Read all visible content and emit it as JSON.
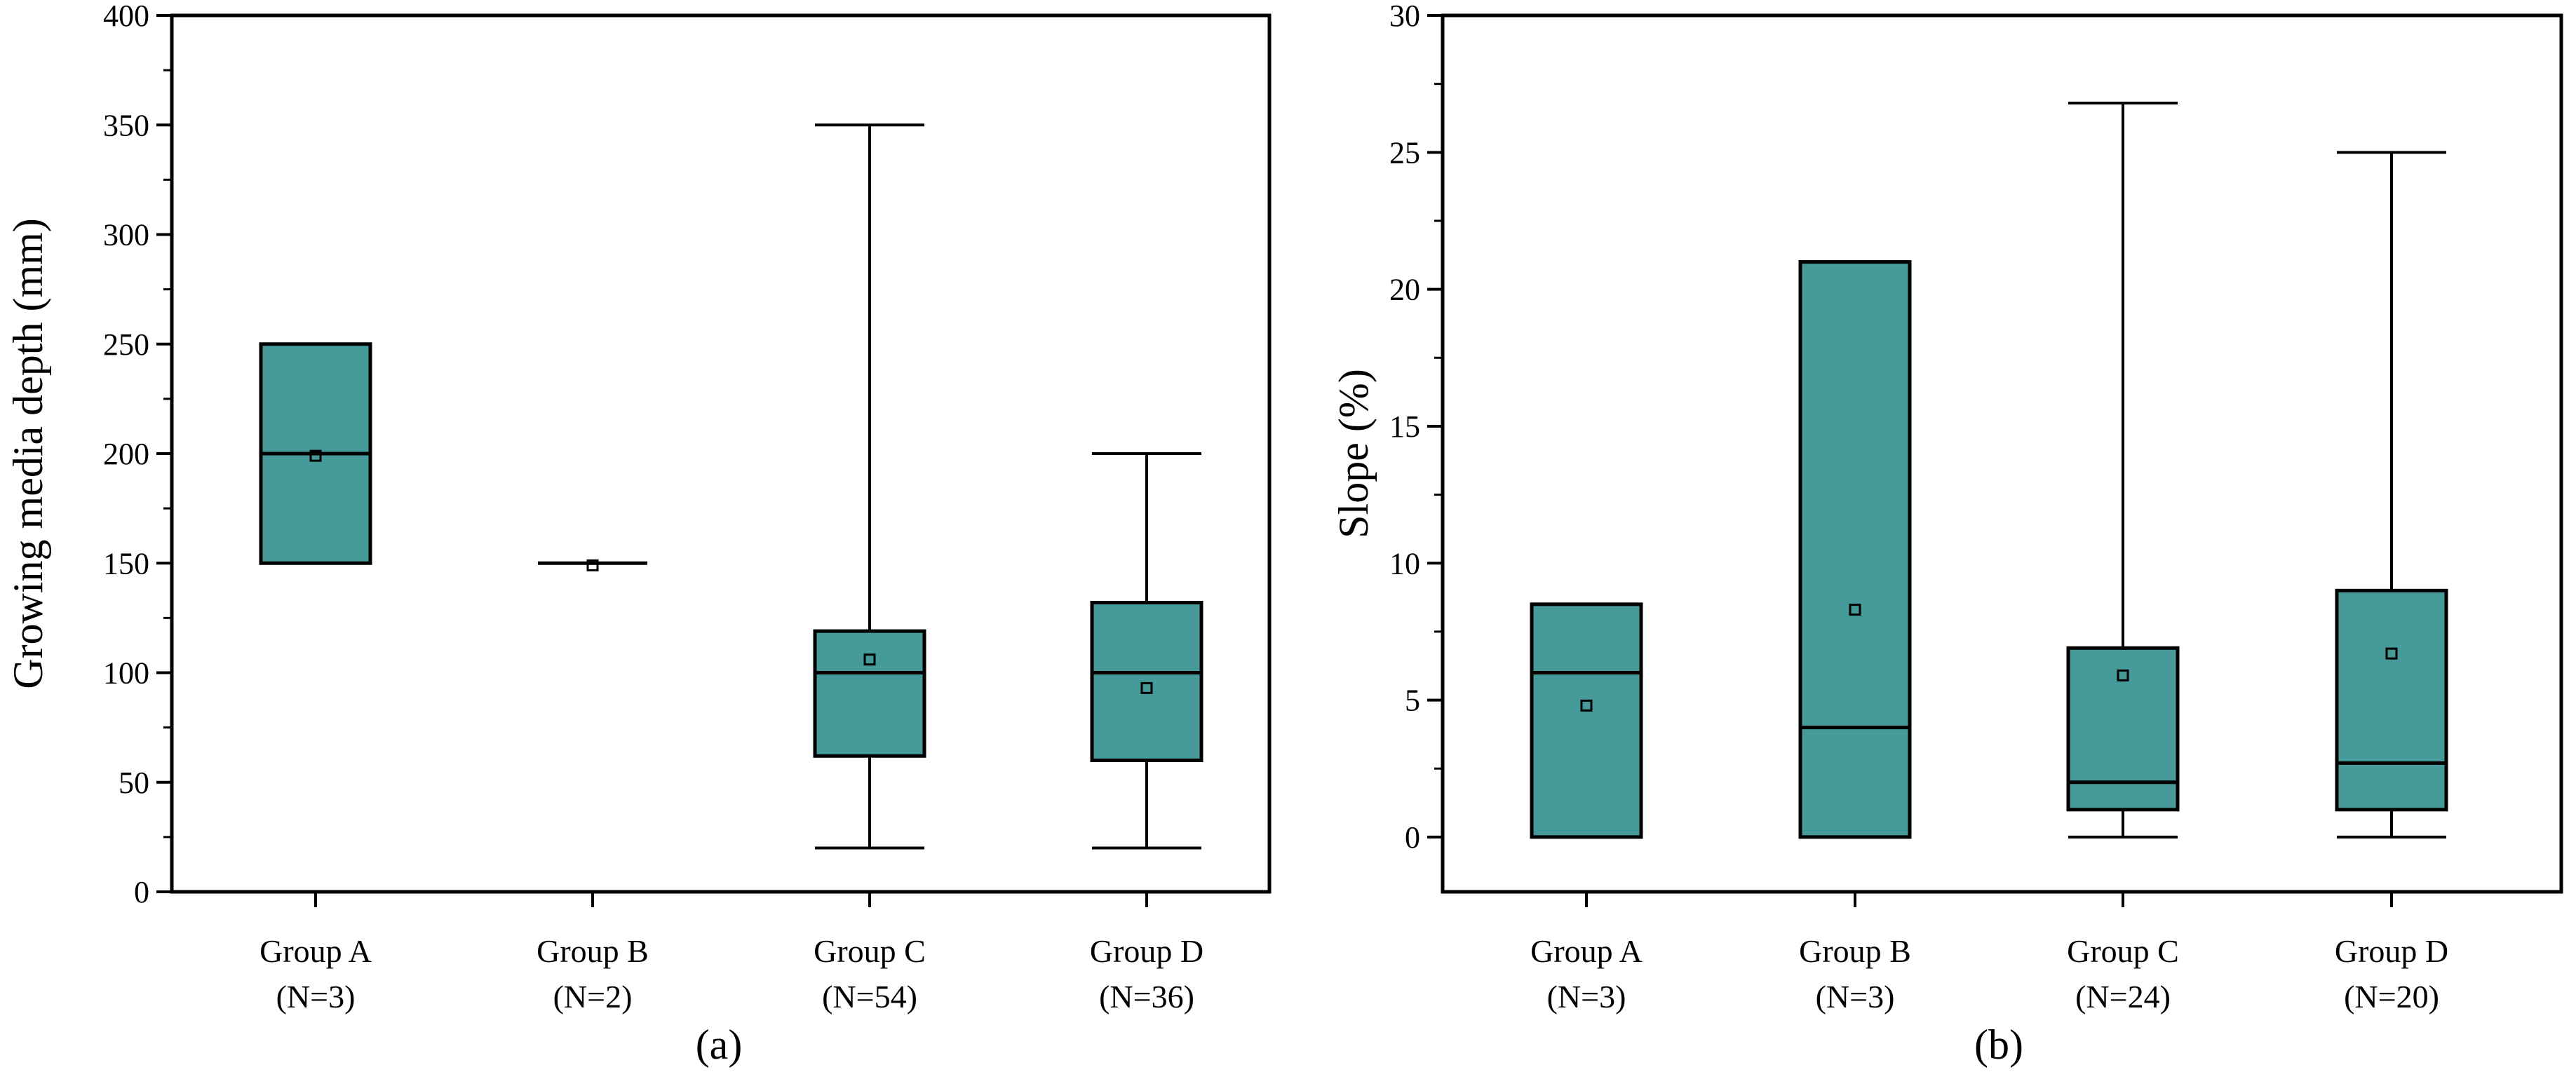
{
  "colors": {
    "box_fill": "#469A9A",
    "stroke": "#000000",
    "background": "#ffffff"
  },
  "chart_data": [
    {
      "type": "box",
      "panel_label": "(a)",
      "title": "",
      "xlabel": "",
      "ylabel": "Growing media depth (mm)",
      "ylim": [
        0,
        400
      ],
      "yticks": [
        0,
        50,
        100,
        150,
        200,
        250,
        300,
        350,
        400
      ],
      "yminor": 25,
      "categories": [
        "Group A",
        "Group B",
        "Group C",
        "Group D"
      ],
      "counts": [
        "(N=3)",
        "(N=2)",
        "(N=54)",
        "(N=36)"
      ],
      "boxes": [
        {
          "min": 150,
          "q1": 150,
          "median": 200,
          "q3": 250,
          "max": 250,
          "mean": 199
        },
        {
          "min": 150,
          "q1": 150,
          "median": 150,
          "q3": 150,
          "max": 150,
          "mean": 149
        },
        {
          "min": 20,
          "q1": 62,
          "median": 100,
          "q3": 119,
          "max": 350,
          "mean": 106
        },
        {
          "min": 20,
          "q1": 60,
          "median": 100,
          "q3": 132,
          "max": 200,
          "mean": 93
        }
      ]
    },
    {
      "type": "box",
      "panel_label": "(b)",
      "title": "",
      "xlabel": "",
      "ylabel": "Slope (%)",
      "ylim": [
        -2,
        30
      ],
      "yticks": [
        0,
        5,
        10,
        15,
        20,
        25,
        30
      ],
      "yminor": 2.5,
      "categories": [
        "Group A",
        "Group B",
        "Group C",
        "Group D"
      ],
      "counts": [
        "(N=3)",
        "(N=3)",
        "(N=24)",
        "(N=20)"
      ],
      "boxes": [
        {
          "min": 0,
          "q1": 0,
          "median": 6,
          "q3": 8.5,
          "max": 8.5,
          "mean": 4.8
        },
        {
          "min": 0,
          "q1": 0,
          "median": 4,
          "q3": 21,
          "max": 21,
          "mean": 8.3
        },
        {
          "min": 0,
          "q1": 1,
          "median": 2,
          "q3": 6.9,
          "max": 26.8,
          "mean": 5.9
        },
        {
          "min": 0,
          "q1": 1,
          "median": 2.7,
          "q3": 9,
          "max": 25,
          "mean": 6.7
        }
      ]
    }
  ]
}
